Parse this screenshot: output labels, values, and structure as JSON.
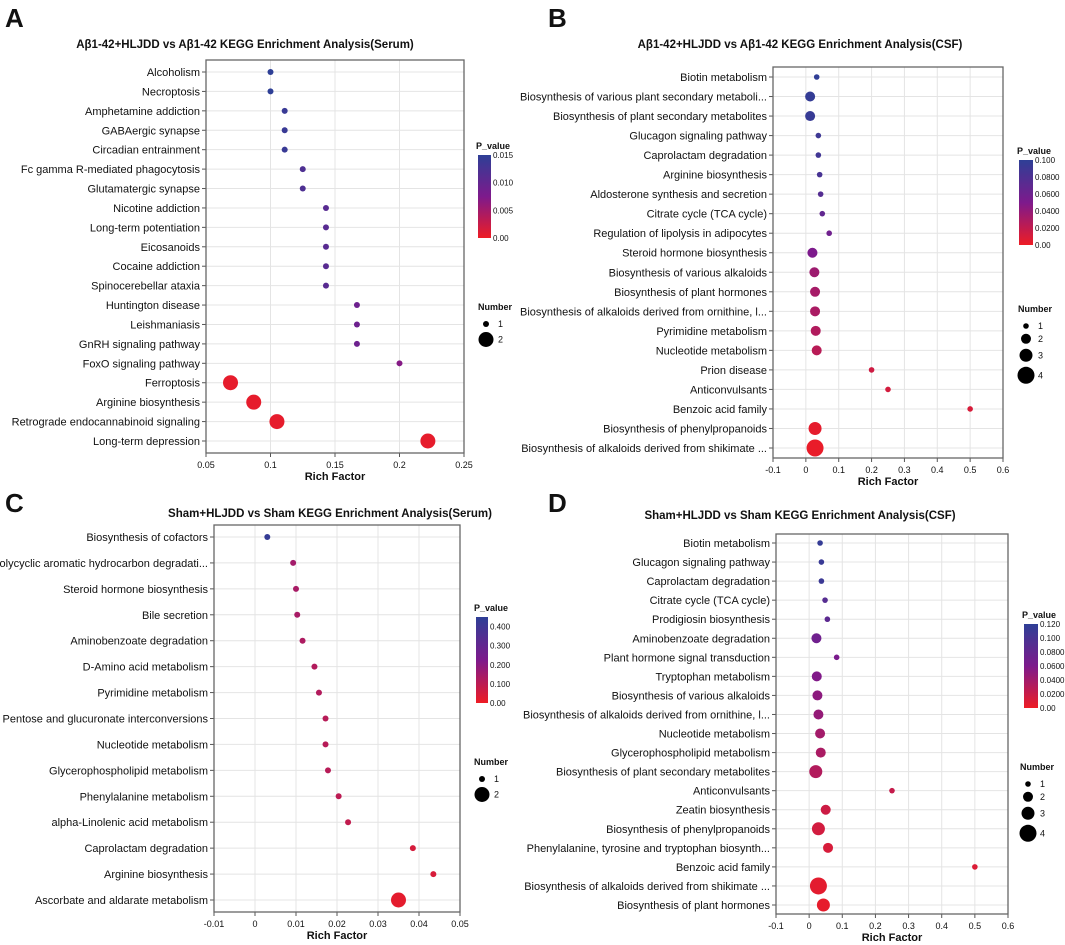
{
  "chart_data": [
    {
      "panel_letter": "A",
      "type": "scatter",
      "title": "Aβ1-42+HLJDD vs Aβ1-42 KEGG Enrichment Analysis(Serum)",
      "xlabel": "Rich Factor",
      "xlim": [
        0.05,
        0.25
      ],
      "xticks": [
        "0.05",
        "0.1",
        "0.15",
        "0.2",
        "0.25"
      ],
      "xtick_values": [
        0.05,
        0.1,
        0.15,
        0.2,
        0.25
      ],
      "color_legend": {
        "title": "P_value",
        "ticks": [
          "0.015",
          "0.010",
          "0.005",
          "0.00"
        ],
        "tick_values": [
          0.015,
          0.01,
          0.005,
          0
        ],
        "max": 0.015
      },
      "size_legend": {
        "title": "Number",
        "values": [
          1,
          2
        ]
      },
      "categories": [
        "Alcoholism",
        "Necroptosis",
        "Amphetamine addiction",
        "GABAergic synapse",
        "Circadian entrainment",
        "Fc gamma R-mediated phagocytosis",
        "Glutamatergic synapse",
        "Nicotine addiction",
        "Long-term potentiation",
        "Eicosanoids",
        "Cocaine addiction",
        "Spinocerebellar ataxia",
        "Huntington disease",
        "Leishmaniasis",
        "GnRH signaling pathway",
        "FoxO signaling pathway",
        "Ferroptosis",
        "Arginine biosynthesis",
        "Retrograde endocannabinoid signaling",
        "Long-term depression"
      ],
      "rich_factor": [
        0.1,
        0.1,
        0.111,
        0.111,
        0.111,
        0.125,
        0.125,
        0.143,
        0.143,
        0.143,
        0.143,
        0.143,
        0.167,
        0.167,
        0.167,
        0.2,
        0.069,
        0.087,
        0.105,
        0.222
      ],
      "number": [
        1,
        1,
        1,
        1,
        1,
        1,
        1,
        1,
        1,
        1,
        1,
        1,
        1,
        1,
        1,
        1,
        2,
        2,
        2,
        2
      ],
      "p_value": [
        0.015,
        0.015,
        0.014,
        0.014,
        0.014,
        0.012,
        0.012,
        0.011,
        0.011,
        0.011,
        0.011,
        0.011,
        0.009,
        0.009,
        0.009,
        0.007,
        0.0005,
        0.0005,
        0.0005,
        0.0005
      ]
    },
    {
      "panel_letter": "B",
      "type": "scatter",
      "title": "Aβ1-42+HLJDD vs Aβ1-42 KEGG Enrichment Analysis(CSF)",
      "xlabel": "Rich Factor",
      "xlim": [
        -0.1,
        0.6
      ],
      "xticks": [
        "-0.1",
        "0",
        "0.1",
        "0.2",
        "0.3",
        "0.4",
        "0.5",
        "0.6"
      ],
      "xtick_values": [
        -0.1,
        0,
        0.1,
        0.2,
        0.3,
        0.4,
        0.5,
        0.6
      ],
      "color_legend": {
        "title": "P_value",
        "ticks": [
          "0.100",
          "0.0800",
          "0.0600",
          "0.0400",
          "0.0200",
          "0.00"
        ],
        "tick_values": [
          0.1,
          0.08,
          0.06,
          0.04,
          0.02,
          0
        ],
        "max": 0.1
      },
      "size_legend": {
        "title": "Number",
        "values": [
          1,
          2,
          3,
          4
        ]
      },
      "categories": [
        "Biotin metabolism",
        "Biosynthesis of various plant secondary metaboli...",
        "Biosynthesis of plant secondary metabolites",
        "Glucagon signaling pathway",
        "Caprolactam degradation",
        "Arginine biosynthesis",
        "Aldosterone synthesis and secretion",
        "Citrate cycle (TCA cycle)",
        "Regulation of lipolysis in adipocytes",
        "Steroid hormone biosynthesis",
        "Biosynthesis of various alkaloids",
        "Biosynthesis of plant hormones",
        "Biosynthesis of alkaloids derived from ornithine, l...",
        "Pyrimidine metabolism",
        "Nucleotide metabolism",
        "Prion disease",
        "Anticonvulsants",
        "Benzoic acid family",
        "Biosynthesis of phenylpropanoids",
        "Biosynthesis of alkaloids derived from shikimate ..."
      ],
      "rich_factor": [
        0.033,
        0.013,
        0.013,
        0.038,
        0.038,
        0.042,
        0.045,
        0.05,
        0.071,
        0.02,
        0.026,
        0.028,
        0.028,
        0.03,
        0.033,
        0.2,
        0.25,
        0.5,
        0.028,
        0.028
      ],
      "number": [
        1,
        2,
        2,
        1,
        1,
        1,
        1,
        1,
        1,
        2,
        2,
        2,
        2,
        2,
        2,
        1,
        1,
        1,
        3,
        4
      ],
      "p_value": [
        0.098,
        0.096,
        0.094,
        0.09,
        0.088,
        0.084,
        0.076,
        0.068,
        0.058,
        0.05,
        0.036,
        0.032,
        0.03,
        0.027,
        0.024,
        0.014,
        0.012,
        0.01,
        0.004,
        0.002
      ]
    },
    {
      "panel_letter": "C",
      "type": "scatter",
      "title": "Sham+HLJDD vs Sham KEGG Enrichment Analysis(Serum)",
      "xlabel": "Rich Factor",
      "xlim": [
        -0.01,
        0.05
      ],
      "xticks": [
        "-0.01",
        "0",
        "0.01",
        "0.02",
        "0.03",
        "0.04",
        "0.05"
      ],
      "xtick_values": [
        -0.01,
        0,
        0.01,
        0.02,
        0.03,
        0.04,
        0.05
      ],
      "color_legend": {
        "title": "P_value",
        "ticks": [
          "0.400",
          "0.300",
          "0.200",
          "0.100",
          "0.00"
        ],
        "tick_values": [
          0.4,
          0.3,
          0.2,
          0.1,
          0
        ],
        "max": 0.45
      },
      "size_legend": {
        "title": "Number",
        "values": [
          1,
          2
        ]
      },
      "categories": [
        "Biosynthesis of cofactors",
        "Polycyclic aromatic hydrocarbon degradati...",
        "Steroid hormone biosynthesis",
        "Bile secretion",
        "Aminobenzoate degradation",
        "D-Amino acid metabolism",
        "Pyrimidine metabolism",
        "Pentose and glucuronate interconversions",
        "Nucleotide metabolism",
        "Glycerophospholipid metabolism",
        "Phenylalanine metabolism",
        "alpha-Linolenic acid metabolism",
        "Caprolactam degradation",
        "Arginine biosynthesis",
        "Ascorbate and aldarate metabolism"
      ],
      "rich_factor": [
        0.003,
        0.0093,
        0.01,
        0.0103,
        0.0116,
        0.0145,
        0.0156,
        0.0172,
        0.0172,
        0.0178,
        0.0204,
        0.0227,
        0.0385,
        0.0435,
        0.035
      ],
      "number": [
        1,
        1,
        1,
        1,
        1,
        1,
        1,
        1,
        1,
        1,
        1,
        1,
        1,
        1,
        2
      ],
      "p_value": [
        0.43,
        0.15,
        0.14,
        0.14,
        0.13,
        0.12,
        0.12,
        0.11,
        0.11,
        0.11,
        0.1,
        0.09,
        0.05,
        0.045,
        0.02
      ]
    },
    {
      "panel_letter": "D",
      "type": "scatter",
      "title": "Sham+HLJDD vs Sham KEGG Enrichment Analysis(CSF)",
      "xlabel": "Rich Factor",
      "xlim": [
        -0.1,
        0.6
      ],
      "xticks": [
        "-0.1",
        "0",
        "0.1",
        "0.2",
        "0.3",
        "0.4",
        "0.5",
        "0.6"
      ],
      "xtick_values": [
        -0.1,
        0,
        0.1,
        0.2,
        0.3,
        0.4,
        0.5,
        0.6
      ],
      "color_legend": {
        "title": "P_value",
        "ticks": [
          "0.120",
          "0.100",
          "0.0800",
          "0.0600",
          "0.0400",
          "0.0200",
          "0.00"
        ],
        "tick_values": [
          0.12,
          0.1,
          0.08,
          0.06,
          0.04,
          0.02,
          0
        ],
        "max": 0.12
      },
      "size_legend": {
        "title": "Number",
        "values": [
          1,
          2,
          3,
          4
        ]
      },
      "categories": [
        "Biotin metabolism",
        "Glucagon signaling pathway",
        "Caprolactam degradation",
        "Citrate cycle (TCA cycle)",
        "Prodigiosin biosynthesis",
        "Aminobenzoate degradation",
        "Plant hormone signal transduction",
        "Tryptophan metabolism",
        "Biosynthesis of various alkaloids",
        "Biosynthesis of alkaloids derived from ornithine, l...",
        "Nucleotide metabolism",
        "Glycerophospholipid metabolism",
        "Biosynthesis of plant secondary metabolites",
        "Anticonvulsants",
        "Zeatin biosynthesis",
        "Biosynthesis of phenylpropanoids",
        "Phenylalanine, tyrosine and tryptophan biosynth...",
        "Benzoic acid family",
        "Biosynthesis of alkaloids derived from shikimate ...",
        "Biosynthesis of plant hormones"
      ],
      "rich_factor": [
        0.033,
        0.037,
        0.037,
        0.048,
        0.055,
        0.022,
        0.083,
        0.023,
        0.025,
        0.028,
        0.033,
        0.035,
        0.02,
        0.25,
        0.05,
        0.028,
        0.057,
        0.5,
        0.028,
        0.043
      ],
      "number": [
        1,
        1,
        1,
        1,
        1,
        2,
        1,
        2,
        2,
        2,
        2,
        2,
        3,
        1,
        2,
        3,
        2,
        1,
        4,
        3
      ],
      "p_value": [
        0.115,
        0.112,
        0.11,
        0.09,
        0.085,
        0.07,
        0.062,
        0.058,
        0.052,
        0.048,
        0.04,
        0.036,
        0.032,
        0.022,
        0.018,
        0.015,
        0.012,
        0.01,
        0.006,
        0.004
      ]
    }
  ],
  "colors": {
    "low": "#ee1c25",
    "mid": "#7d1a8c",
    "high": "#2e3f96"
  }
}
